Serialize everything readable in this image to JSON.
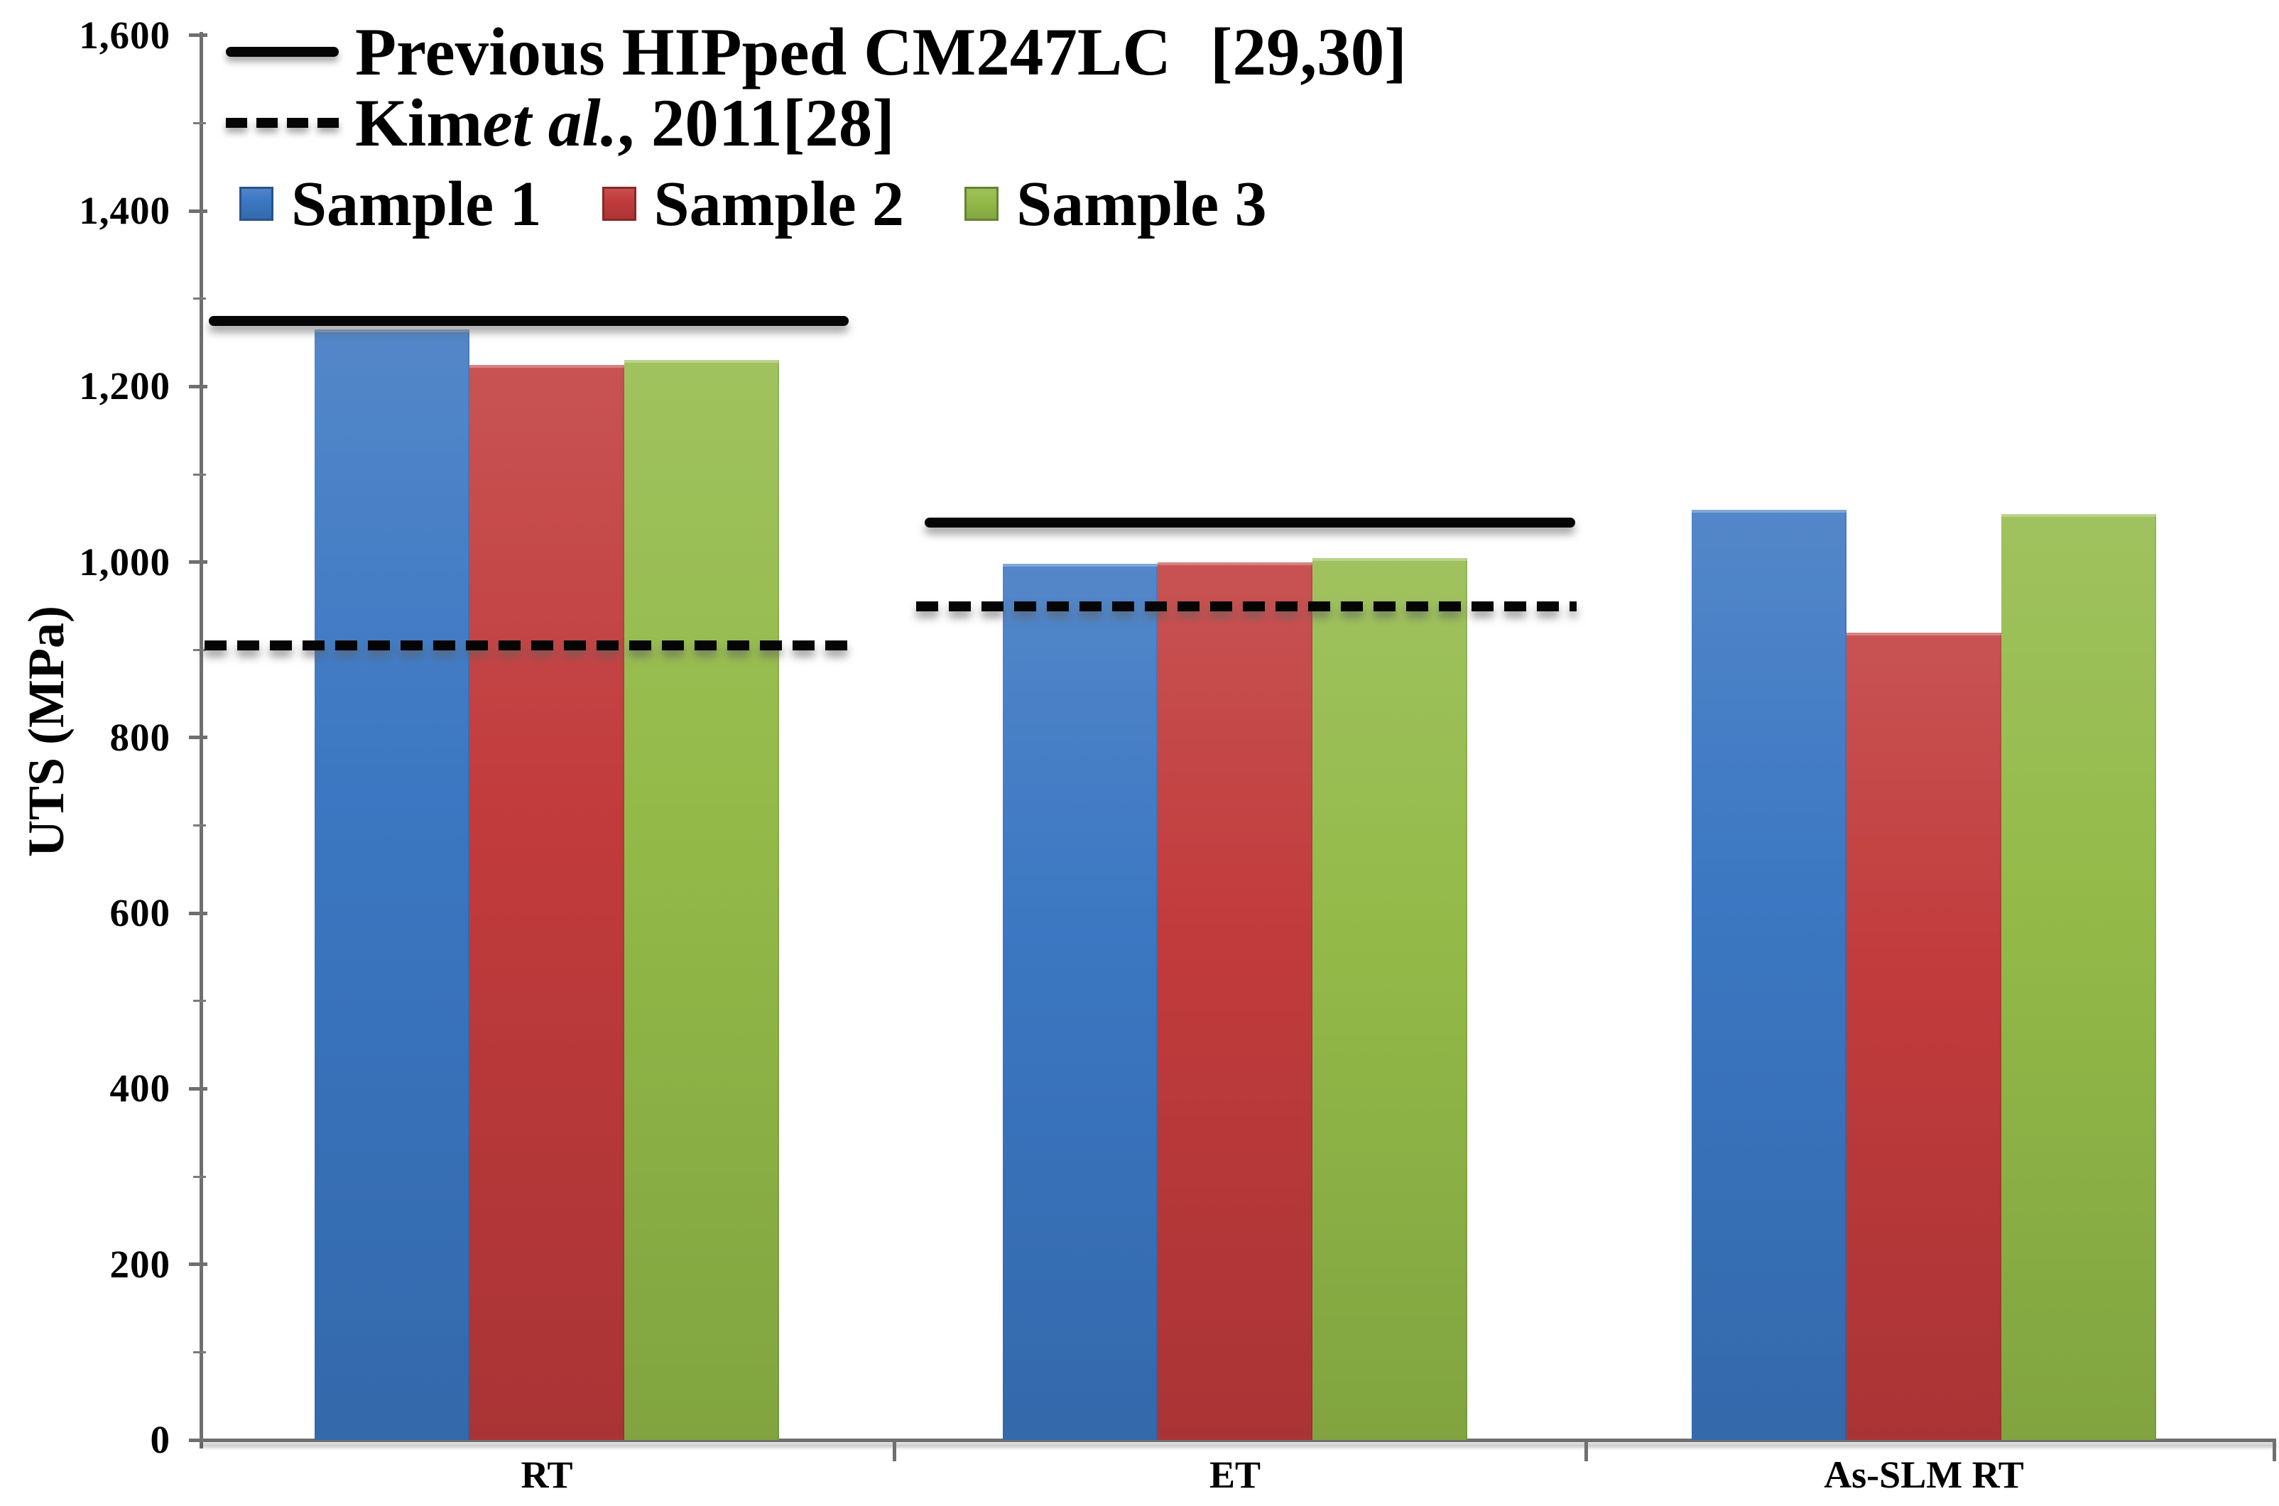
{
  "chart_data": {
    "type": "bar",
    "title": "",
    "xlabel": "",
    "ylabel": "UTS (MPa)",
    "ylim": [
      0,
      1600
    ],
    "ytick_step": 200,
    "ytick_minor_step": 100,
    "grid": false,
    "legend_position": "top-left",
    "categories": [
      "RT",
      "ET",
      "As-SLM RT"
    ],
    "series": [
      {
        "name": "Sample 1",
        "color": "#3b77c2",
        "values": [
          1265,
          998,
          1060
        ]
      },
      {
        "name": "Sample 2",
        "color": "#c13b3c",
        "values": [
          1225,
          1000,
          920
        ]
      },
      {
        "name": "Sample 3",
        "color": "#93ba49",
        "values": [
          1230,
          1005,
          1055
        ]
      }
    ],
    "reference_lines": [
      {
        "name": "Previous HIPped CM247LC",
        "ref": "[29,30]",
        "style": "solid",
        "color": "#000000",
        "segments": [
          {
            "category": "RT",
            "value": 1275
          },
          {
            "category": "ET",
            "value": 1045
          }
        ]
      },
      {
        "name": "Kim et al., 2011",
        "ref": "[28]",
        "style": "dashed",
        "color": "#000000",
        "segments": [
          {
            "category": "RT",
            "value": 905
          },
          {
            "category": "ET",
            "value": 950
          }
        ]
      }
    ]
  },
  "axis": {
    "y_title": "UTS (MPa)",
    "y_ticks": [
      "1,600",
      "1,400",
      "1,200",
      "1,000",
      "800",
      "600",
      "400",
      "200",
      "0"
    ],
    "x_labels": [
      "RT",
      "ET",
      "As-SLM RT"
    ],
    "axis_color": "#6f6f6f",
    "text_color": "#000000"
  },
  "legend": {
    "line1": {
      "label": "Previous HIPped CM247LC",
      "ref": "[29,30]"
    },
    "line2": {
      "pre": "Kim ",
      "italic": "et al.",
      "post": ", 2011",
      "ref": "[28]"
    },
    "samples": [
      "Sample 1",
      "Sample 2",
      "Sample 3"
    ]
  }
}
